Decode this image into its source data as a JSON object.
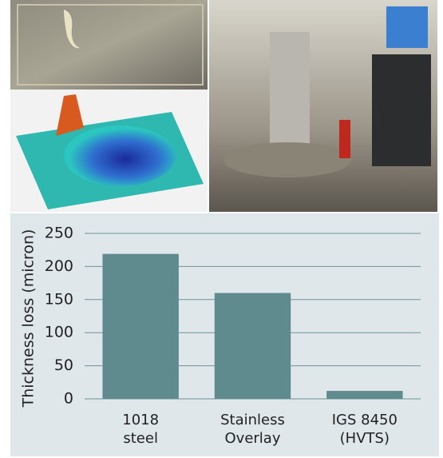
{
  "chart_data": {
    "type": "bar",
    "y_label": "Thickness loss (micron)",
    "categories": [
      "1018\nsteel",
      "Stainless\nOverlay",
      "IGS 8450\n(HVTS)"
    ],
    "values": [
      219,
      160,
      12
    ],
    "color": "#5f8a8e",
    "ylim": [
      0,
      250
    ],
    "yticks": [
      0,
      50,
      100,
      150,
      200,
      250
    ],
    "grid": true
  }
}
